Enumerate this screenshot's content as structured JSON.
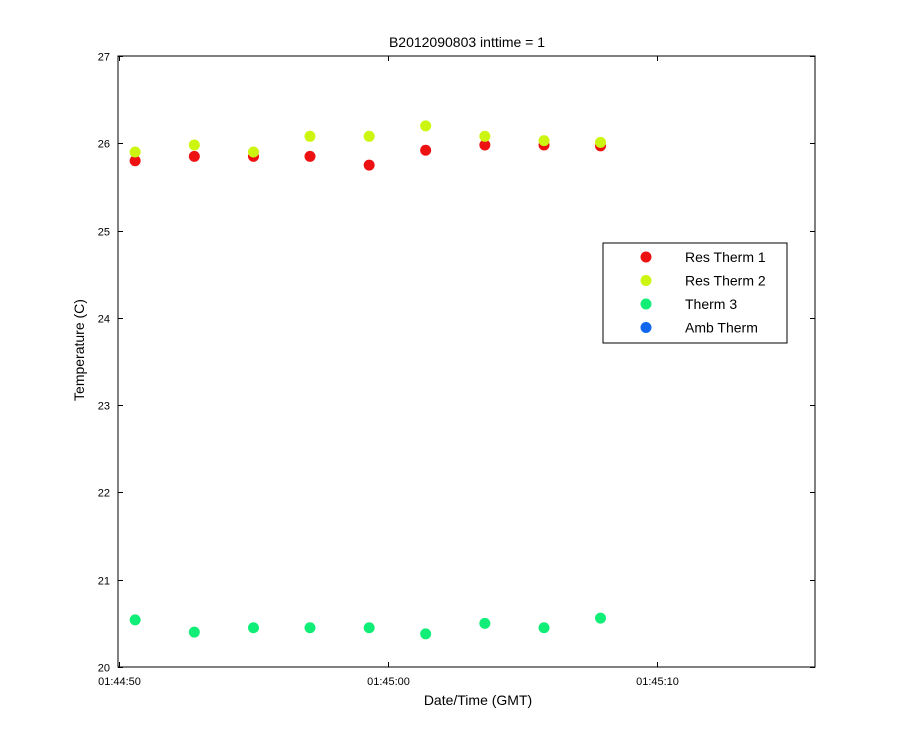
{
  "chart_data": {
    "type": "scatter",
    "title": "B2012090803 inttime = 1",
    "xlabel": "Date/Time (GMT)",
    "ylabel": "Temperature (C)",
    "xlim_seconds": [
      0,
      26
    ],
    "ylim": [
      20,
      27
    ],
    "x_ticks": [
      {
        "seconds": 0,
        "label": "01:44:50"
      },
      {
        "seconds": 10,
        "label": "01:45:00"
      },
      {
        "seconds": 20,
        "label": "01:45:10"
      }
    ],
    "y_ticks": [
      20,
      21,
      22,
      23,
      24,
      25,
      26,
      27
    ],
    "x_seconds": [
      0.6,
      2.8,
      5.0,
      7.1,
      9.3,
      11.4,
      13.6,
      15.8,
      17.9
    ],
    "series": [
      {
        "name": "Res Therm 1",
        "color": "#ee1111",
        "values": [
          25.8,
          25.85,
          25.85,
          25.85,
          25.75,
          25.92,
          25.98,
          25.98,
          25.97
        ]
      },
      {
        "name": "Res Therm 2",
        "color": "#ccf50f",
        "values": [
          25.9,
          25.98,
          25.9,
          26.08,
          26.08,
          26.2,
          26.08,
          26.03,
          26.01
        ]
      },
      {
        "name": "Therm 3",
        "color": "#11ee77",
        "values": [
          20.54,
          20.4,
          20.45,
          20.45,
          20.45,
          20.38,
          20.5,
          20.45,
          20.56
        ]
      },
      {
        "name": "Amb Therm",
        "color": "#1166ee",
        "values": []
      }
    ],
    "legend_position": "right"
  }
}
